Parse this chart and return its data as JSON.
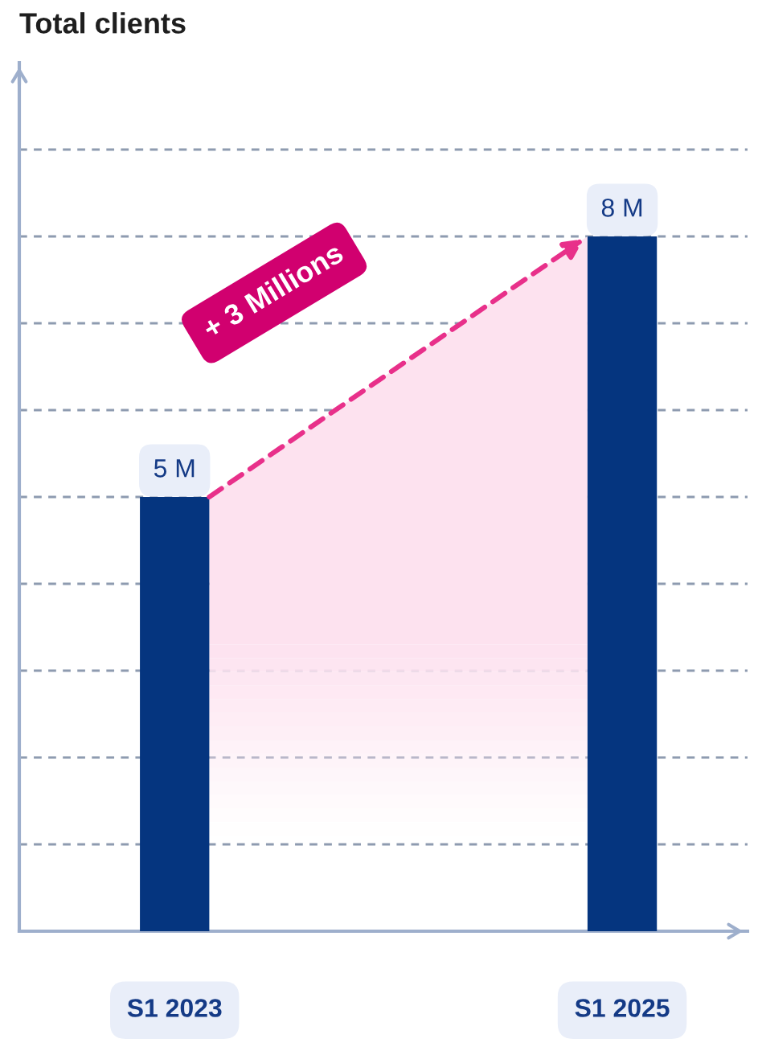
{
  "chart_data": {
    "type": "bar",
    "title": "Total clients",
    "categories": [
      "S1 2023",
      "S1 2025"
    ],
    "values": [
      5,
      8
    ],
    "color": "#05357f",
    "value_labels": [
      "5 M",
      "8 M"
    ],
    "ylim": [
      0,
      10
    ],
    "yticks": [
      {
        "value": 1,
        "label": null
      },
      {
        "value": 2,
        "label": null
      },
      {
        "value": 3,
        "label": null
      },
      {
        "value": 4,
        "label": null
      },
      {
        "value": 5,
        "label": null
      },
      {
        "value": 6,
        "label": null
      },
      {
        "value": 7,
        "label": null
      },
      {
        "value": 8,
        "label": null
      },
      {
        "value": 9,
        "label": null
      }
    ],
    "grid": "y",
    "tick_labels": "x",
    "annotations": [
      "+ 3 Millions"
    ]
  }
}
